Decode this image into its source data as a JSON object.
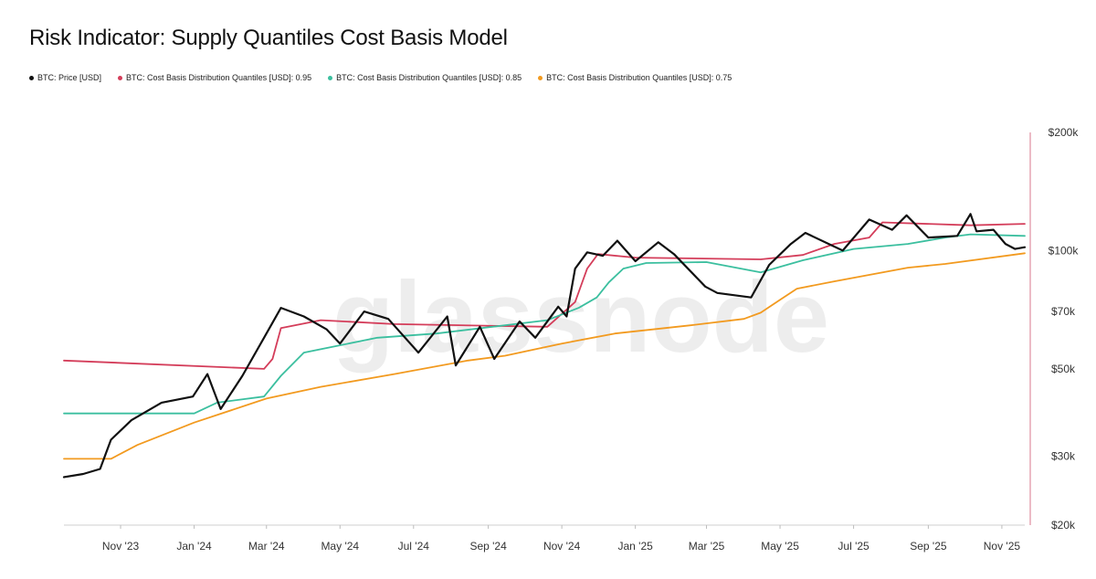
{
  "title": "Risk Indicator: Supply Quantiles Cost Basis Model",
  "watermark": "glassnode",
  "legend": [
    {
      "label": "BTC: Price [USD]",
      "color": "#111111"
    },
    {
      "label": "BTC: Cost Basis Distribution Quantiles [USD]: 0.95",
      "color": "#d43d5a"
    },
    {
      "label": "BTC: Cost Basis Distribution Quantiles [USD]: 0.85",
      "color": "#3bbf9f"
    },
    {
      "label": "BTC: Cost Basis Distribution Quantiles [USD]: 0.75",
      "color": "#f29a1f"
    }
  ],
  "chart_data": {
    "type": "line",
    "title": "Risk Indicator: Supply Quantiles Cost Basis Model",
    "yscale": "log",
    "ylim": [
      20000,
      200000
    ],
    "xlim": [
      "2023-09-15",
      "2025-11-20"
    ],
    "x_ticks": [
      "Nov '23",
      "Jan '24",
      "Mar '24",
      "May '24",
      "Jul '24",
      "Sep '24",
      "Nov '24",
      "Jan '25",
      "Mar '25",
      "May '25",
      "Jul '25",
      "Sep '25",
      "Nov '25"
    ],
    "x_tick_dates": [
      "2023-11-01",
      "2024-01-01",
      "2024-03-01",
      "2024-05-01",
      "2024-07-01",
      "2024-09-01",
      "2024-11-01",
      "2025-01-01",
      "2025-03-01",
      "2025-05-01",
      "2025-07-01",
      "2025-09-01",
      "2025-11-01"
    ],
    "y_ticks": [
      20000,
      30000,
      50000,
      70000,
      100000,
      200000
    ],
    "y_tick_labels": [
      "$20k",
      "$30k",
      "$50k",
      "$70k",
      "$100k",
      "$200k"
    ],
    "series": [
      {
        "name": "BTC: Price [USD]",
        "color": "#111111",
        "x": [
          "2023-09-15",
          "2023-10-01",
          "2023-10-15",
          "2023-10-24",
          "2023-11-10",
          "2023-12-05",
          "2023-12-31",
          "2024-01-12",
          "2024-01-23",
          "2024-02-10",
          "2024-02-28",
          "2024-03-13",
          "2024-04-01",
          "2024-04-20",
          "2024-05-01",
          "2024-05-21",
          "2024-06-10",
          "2024-07-05",
          "2024-07-29",
          "2024-08-05",
          "2024-08-25",
          "2024-09-06",
          "2024-09-27",
          "2024-10-10",
          "2024-10-29",
          "2024-11-05",
          "2024-11-12",
          "2024-11-22",
          "2024-12-05",
          "2024-12-17",
          "2025-01-01",
          "2025-01-20",
          "2025-02-02",
          "2025-02-28",
          "2025-03-10",
          "2025-04-07",
          "2025-04-22",
          "2025-05-10",
          "2025-05-22",
          "2025-06-22",
          "2025-07-14",
          "2025-08-02",
          "2025-08-14",
          "2025-09-01",
          "2025-09-25",
          "2025-10-06",
          "2025-10-11",
          "2025-10-25",
          "2025-11-04",
          "2025-11-12",
          "2025-11-20"
        ],
        "values": [
          26500,
          27000,
          27800,
          33000,
          37000,
          41000,
          42500,
          48500,
          39500,
          48000,
          60000,
          71500,
          68000,
          63000,
          58000,
          70000,
          67000,
          55000,
          68000,
          51000,
          64000,
          53000,
          66000,
          60000,
          72000,
          68000,
          90000,
          99000,
          97000,
          106000,
          94000,
          105000,
          98000,
          81000,
          78000,
          76000,
          92000,
          104000,
          111000,
          100000,
          120000,
          113000,
          123000,
          108000,
          109000,
          124000,
          112000,
          113000,
          104000,
          101000,
          102000
        ]
      },
      {
        "name": "BTC: Cost Basis Distribution Quantiles [USD]: 0.95",
        "color": "#d43d5a",
        "x": [
          "2023-09-15",
          "2024-02-28",
          "2024-03-06",
          "2024-03-13",
          "2024-04-15",
          "2024-06-15",
          "2024-10-20",
          "2024-11-12",
          "2024-11-22",
          "2024-12-01",
          "2025-01-01",
          "2025-04-15",
          "2025-05-20",
          "2025-06-15",
          "2025-07-14",
          "2025-07-25",
          "2025-10-06",
          "2025-11-20"
        ],
        "values": [
          52500,
          50000,
          53000,
          63500,
          66500,
          65000,
          64000,
          74000,
          90000,
          98000,
          96000,
          95000,
          97500,
          104000,
          108000,
          118000,
          116000,
          117000
        ]
      },
      {
        "name": "BTC: Cost Basis Distribution Quantiles [USD]: 0.85",
        "color": "#3bbf9f",
        "x": [
          "2023-09-15",
          "2024-01-01",
          "2024-01-20",
          "2024-02-28",
          "2024-03-13",
          "2024-04-01",
          "2024-06-01",
          "2024-07-20",
          "2024-10-20",
          "2024-11-15",
          "2024-11-30",
          "2024-12-10",
          "2024-12-22",
          "2025-01-10",
          "2025-03-01",
          "2025-04-15",
          "2025-05-20",
          "2025-07-01",
          "2025-08-15",
          "2025-09-15",
          "2025-10-06",
          "2025-11-20"
        ],
        "values": [
          38500,
          38500,
          41000,
          42500,
          48000,
          55000,
          60000,
          61500,
          66500,
          71500,
          76000,
          83000,
          90000,
          93000,
          93500,
          88000,
          94500,
          101000,
          104000,
          108000,
          110000,
          109000
        ]
      },
      {
        "name": "BTC: Cost Basis Distribution Quantiles [USD]: 0.75",
        "color": "#f29a1f",
        "x": [
          "2023-09-15",
          "2023-10-24",
          "2023-11-15",
          "2024-01-01",
          "2024-03-01",
          "2024-04-15",
          "2024-06-15",
          "2024-08-15",
          "2024-09-15",
          "2024-11-01",
          "2024-12-15",
          "2025-02-15",
          "2025-04-01",
          "2025-04-15",
          "2025-05-01",
          "2025-05-15",
          "2025-06-15",
          "2025-08-15",
          "2025-09-15",
          "2025-11-20"
        ],
        "values": [
          29500,
          29500,
          32000,
          36500,
          42000,
          45000,
          48500,
          52500,
          54000,
          58000,
          61500,
          64500,
          67000,
          69500,
          75000,
          80000,
          83500,
          90500,
          92500,
          98500
        ]
      }
    ]
  }
}
